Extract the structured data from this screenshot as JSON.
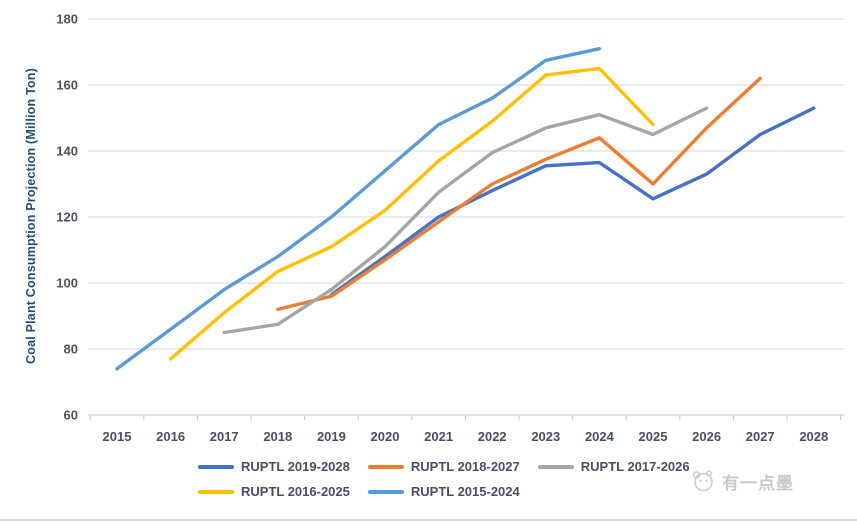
{
  "chart_data": {
    "type": "line",
    "title": "",
    "xlabel": "",
    "ylabel": "Coal Plant Consumption Projection (Million Ton)",
    "x": [
      2015,
      2016,
      2017,
      2018,
      2019,
      2020,
      2021,
      2022,
      2023,
      2024,
      2025,
      2026,
      2027,
      2028
    ],
    "ylim": [
      60,
      180
    ],
    "yticks": [
      180,
      160,
      140,
      120,
      100,
      80,
      60
    ],
    "grid": true,
    "legend_position": "bottom",
    "series": [
      {
        "name": "RUPTL 2019-2028",
        "color": "#4472C4",
        "start_year": 2019,
        "values": [
          96.5,
          108,
          120,
          128,
          135.5,
          136.5,
          125.5,
          133,
          145,
          153
        ]
      },
      {
        "name": "RUPTL 2018-2027",
        "color": "#ED7D31",
        "start_year": 2018,
        "values": [
          92,
          96,
          107,
          118.5,
          130,
          137.5,
          144,
          130,
          147,
          162
        ]
      },
      {
        "name": "RUPTL 2017-2026",
        "color": "#A5A5A5",
        "start_year": 2017,
        "values": [
          85,
          87.5,
          98,
          111,
          127.5,
          139.5,
          147,
          151,
          145,
          153
        ]
      },
      {
        "name": "RUPTL 2016-2025",
        "color": "#FFC000",
        "start_year": 2016,
        "values": [
          77,
          91,
          103.5,
          111,
          122,
          137,
          149,
          163,
          165,
          148
        ]
      },
      {
        "name": "RUPTL 2015-2024",
        "color": "#5B9BD5",
        "start_year": 2015,
        "values": [
          74,
          86,
          98,
          108,
          120,
          134,
          148,
          156,
          167.5,
          171
        ]
      }
    ]
  },
  "watermark": {
    "text": "有一点墨"
  },
  "colors": {
    "grid": "#dcdee0",
    "axis": "#c9cdd3",
    "axis_title": "#1F4E79",
    "tick_text": "#475063",
    "watermark": "#c9c9c9"
  }
}
